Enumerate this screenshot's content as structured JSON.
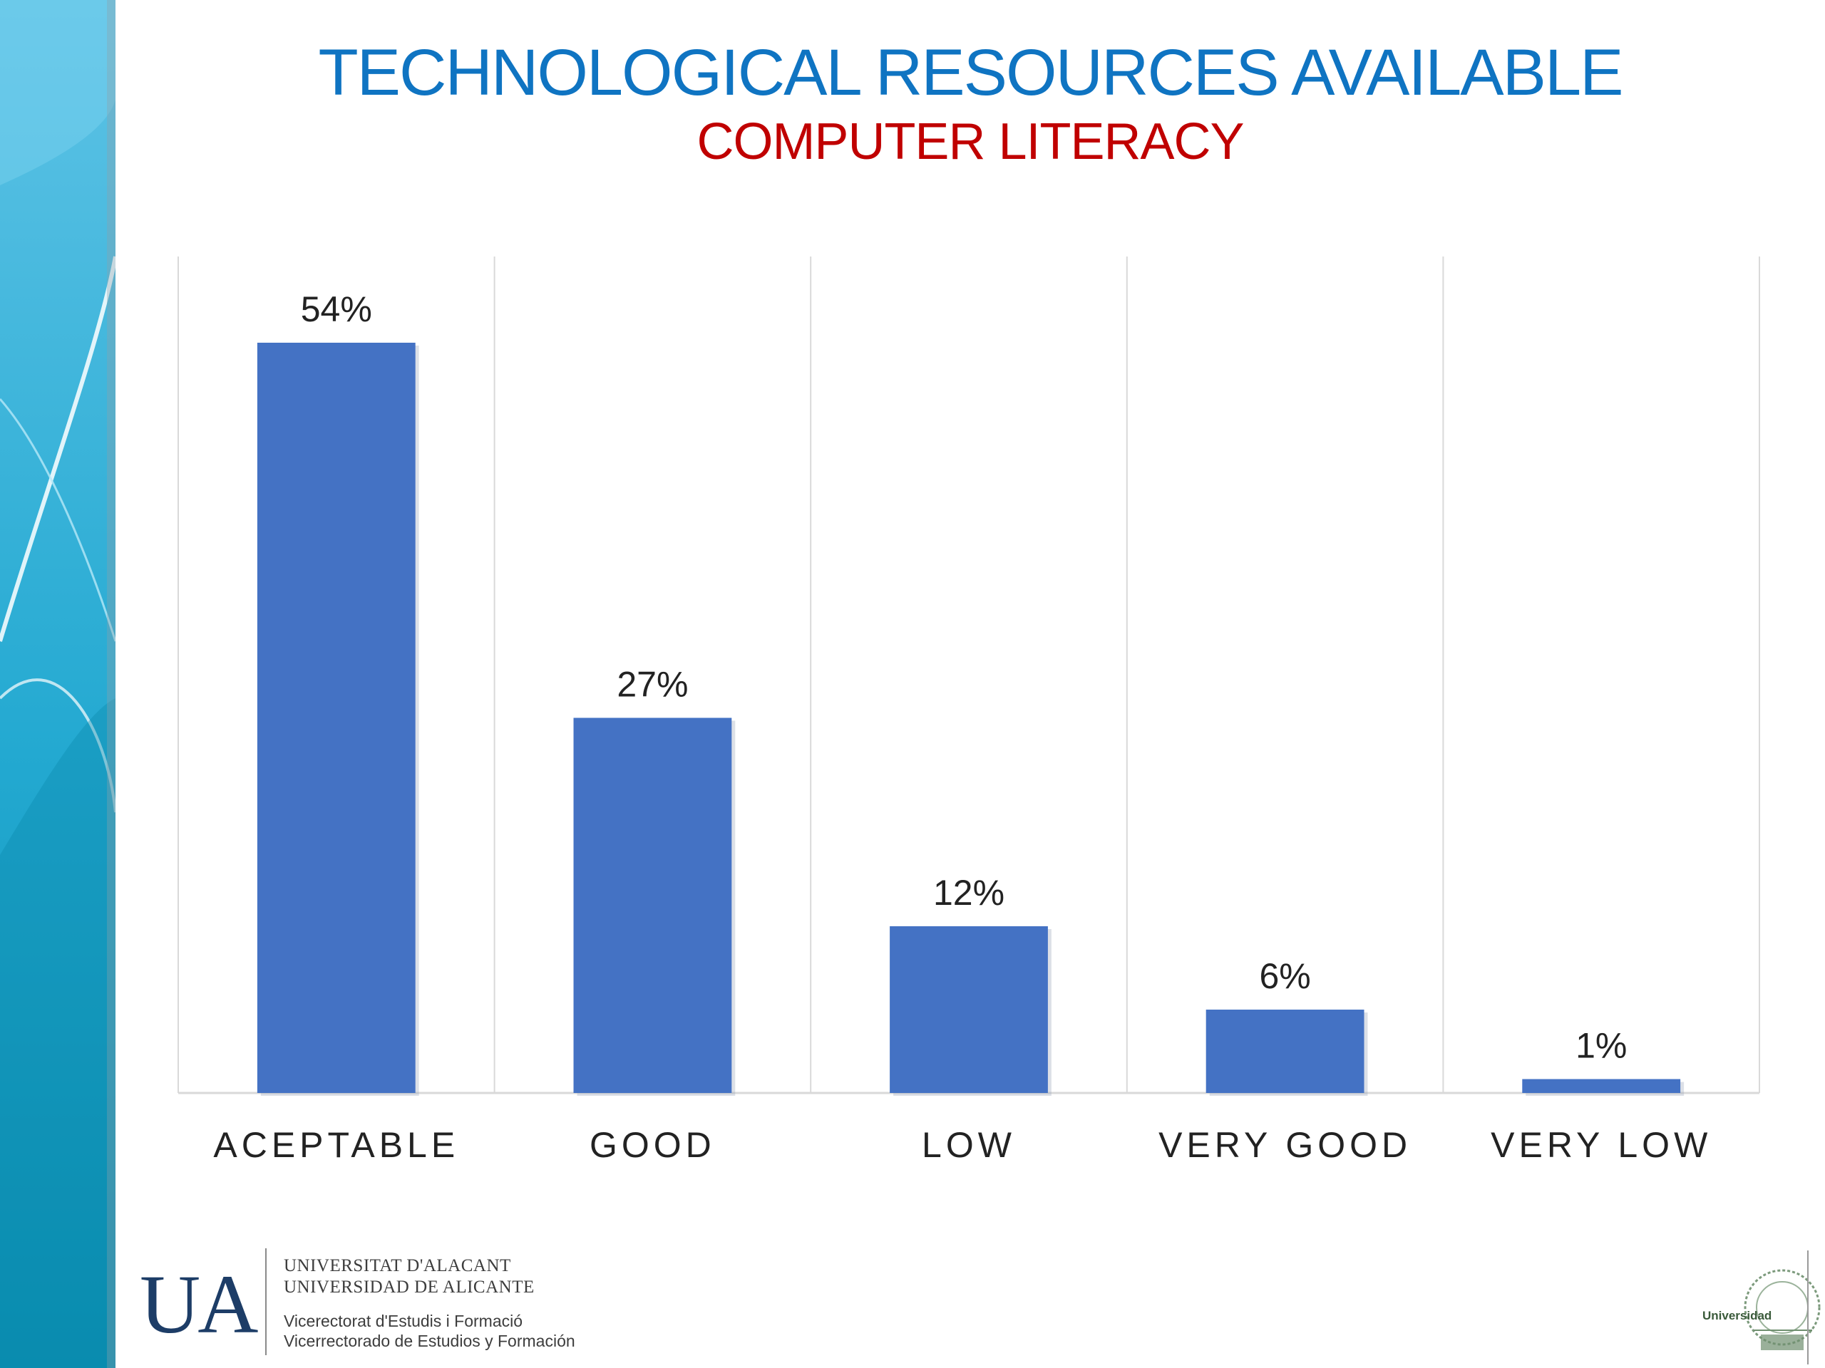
{
  "header": {
    "title": "TECHNOLOGICAL RESOURCES AVAILABLE",
    "subtitle": "COMPUTER LITERACY"
  },
  "colors": {
    "title": "#0f74c2",
    "subtitle": "#c00000",
    "bar": "#4472c4",
    "band_dark": "#0a8fb2",
    "band_light": "#5ec3e6"
  },
  "chart_data": {
    "type": "bar",
    "categories": [
      "ACEPTABLE",
      "GOOD",
      "LOW",
      "VERY GOOD",
      "VERY LOW"
    ],
    "values": [
      54,
      27,
      12,
      6,
      1
    ],
    "data_labels": [
      "54%",
      "27%",
      "12%",
      "6%",
      "1%"
    ],
    "unit": "%",
    "ylim": [
      0,
      60
    ],
    "grid": "vertical category separators",
    "legend": "none"
  },
  "footer": {
    "ua_mark": "UA",
    "university_ca": "UNIVERSITAT D'ALACANT",
    "university_es": "UNIVERSIDAD DE ALICANTE",
    "office_ca": "Vicerectorat d'Estudis i Formació",
    "office_es": "Vicerrectorado de Estudios y Formación",
    "corner_logo_text": "Universidad",
    "corner_logo_icon": "university-seal-icon"
  }
}
